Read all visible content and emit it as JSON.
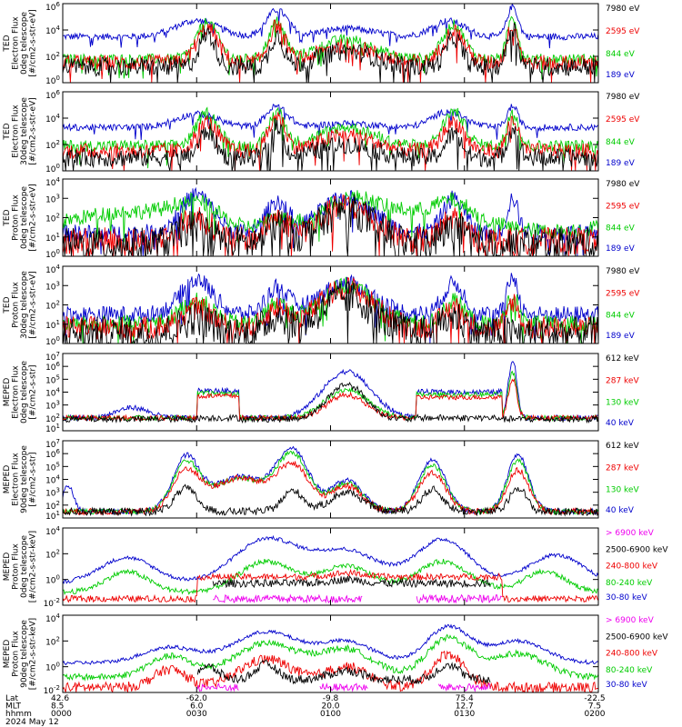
{
  "chart_data": {
    "type": "line",
    "x_axis": {
      "ticks": [
        "0000",
        "0030",
        "0100",
        "0130",
        "0200"
      ],
      "rows": [
        {
          "label": "Lat",
          "values": [
            "42.6",
            "-62.0",
            "-9.8",
            "75.4",
            "-22.5"
          ]
        },
        {
          "label": "MLT",
          "values": [
            "8.5",
            "6.0",
            "20.0",
            "12.7",
            "7.5"
          ]
        },
        {
          "label": "hhmm",
          "values": [
            "0000",
            "0030",
            "0100",
            "0130",
            "0200"
          ]
        }
      ],
      "date": "2024 May 12"
    },
    "panels": [
      {
        "ylabel": [
          "TED",
          "Electron Flux",
          "0deg telescope",
          "[#/cm2-s-str-eV]"
        ],
        "ylim_exp": [
          0,
          6
        ],
        "tick_labels": [
          "10^6",
          "10^4",
          "10^2",
          "10^0"
        ],
        "series": [
          {
            "name": "7980 eV",
            "color": "#000000"
          },
          {
            "name": "2595 eV",
            "color": "#ee0000"
          },
          {
            "name": "844 eV",
            "color": "#00cc00"
          },
          {
            "name": "189 eV",
            "color": "#0000cc"
          }
        ]
      },
      {
        "ylabel": [
          "TED",
          "Electron Flux",
          "30deg telescope",
          "[#/cm2-s-str-eV]"
        ],
        "ylim_exp": [
          0,
          6
        ],
        "tick_labels": [
          "10^6",
          "10^4",
          "10^2",
          "10^0"
        ],
        "series": [
          {
            "name": "7980 eV",
            "color": "#000000"
          },
          {
            "name": "2595 eV",
            "color": "#ee0000"
          },
          {
            "name": "844 eV",
            "color": "#00cc00"
          },
          {
            "name": "189 eV",
            "color": "#0000cc"
          }
        ]
      },
      {
        "ylabel": [
          "TED",
          "Proton Flux",
          "0deg telescope",
          "[#/cm2-s-str-eV]"
        ],
        "ylim_exp": [
          0,
          4
        ],
        "tick_labels": [
          "10^4",
          "10^3",
          "10^2",
          "10^1",
          "10^0"
        ],
        "series": [
          {
            "name": "7980 eV",
            "color": "#000000"
          },
          {
            "name": "2595 eV",
            "color": "#ee0000"
          },
          {
            "name": "844 eV",
            "color": "#00cc00"
          },
          {
            "name": "189 eV",
            "color": "#0000cc"
          }
        ]
      },
      {
        "ylabel": [
          "TED",
          "Proton Flux",
          "30deg telescope",
          "[#/cm2-s-str-eV]"
        ],
        "ylim_exp": [
          0,
          4
        ],
        "tick_labels": [
          "10^4",
          "10^3",
          "10^2",
          "10^1",
          "10^0"
        ],
        "series": [
          {
            "name": "7980 eV",
            "color": "#000000"
          },
          {
            "name": "2595 eV",
            "color": "#ee0000"
          },
          {
            "name": "844 eV",
            "color": "#00cc00"
          },
          {
            "name": "189 eV",
            "color": "#0000cc"
          }
        ]
      },
      {
        "ylabel": [
          "MEPED",
          "Electron Flux",
          "0deg telescope",
          "[#/cm2-s-str]"
        ],
        "ylim_exp": [
          1,
          7
        ],
        "tick_labels": [
          "10^7",
          "10^6",
          "10^5",
          "10^4",
          "10^3",
          "10^2",
          "10^1"
        ],
        "series": [
          {
            "name": "612 keV",
            "color": "#000000"
          },
          {
            "name": "287 keV",
            "color": "#ee0000"
          },
          {
            "name": "130 keV",
            "color": "#00cc00"
          },
          {
            "name": "40 keV",
            "color": "#0000cc"
          }
        ]
      },
      {
        "ylabel": [
          "MEPED",
          "Electron Flux",
          "90deg telescope",
          "[#/cm2-s-str]"
        ],
        "ylim_exp": [
          1,
          7
        ],
        "tick_labels": [
          "10^7",
          "10^6",
          "10^5",
          "10^4",
          "10^3",
          "10^2",
          "10^1"
        ],
        "series": [
          {
            "name": "612 keV",
            "color": "#000000"
          },
          {
            "name": "287 keV",
            "color": "#ee0000"
          },
          {
            "name": "130 keV",
            "color": "#00cc00"
          },
          {
            "name": "40 keV",
            "color": "#0000cc"
          }
        ]
      },
      {
        "ylabel": [
          "MEPED",
          "Proton Flux",
          "0deg telescope",
          "[#/cm2-s-str-keV]"
        ],
        "ylim_exp": [
          -2,
          4
        ],
        "tick_labels": [
          "10^4",
          "10^2",
          "10^0",
          "10^-2"
        ],
        "series": [
          {
            "name": "> 6900 keV",
            "color": "#ee00ee"
          },
          {
            "name": "2500-6900 keV",
            "color": "#000000"
          },
          {
            "name": "240-800 keV",
            "color": "#ee0000"
          },
          {
            "name": "80-240 keV",
            "color": "#00cc00"
          },
          {
            "name": "30-80 keV",
            "color": "#0000cc"
          }
        ]
      },
      {
        "ylabel": [
          "MEPED",
          "Proton Flux",
          "90deg telescope",
          "[#/cm2-s-str-keV]"
        ],
        "ylim_exp": [
          -2,
          4
        ],
        "tick_labels": [
          "10^4",
          "10^2",
          "10^0",
          "10^-2"
        ],
        "series": [
          {
            "name": "> 6900 keV",
            "color": "#ee00ee"
          },
          {
            "name": "2500-6900 keV",
            "color": "#000000"
          },
          {
            "name": "240-800 keV",
            "color": "#ee0000"
          },
          {
            "name": "80-240 keV",
            "color": "#00cc00"
          },
          {
            "name": "30-80 keV",
            "color": "#0000cc"
          }
        ]
      }
    ]
  }
}
